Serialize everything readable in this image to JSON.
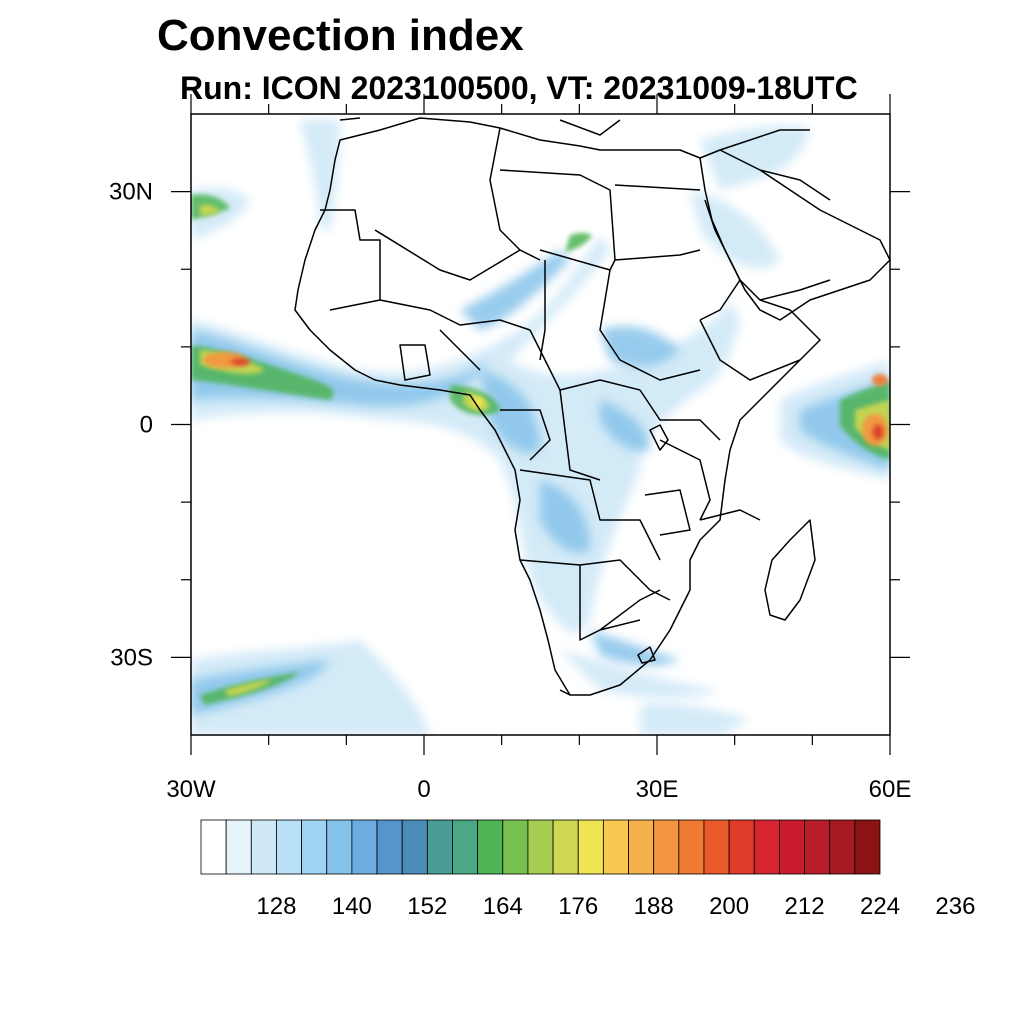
{
  "title": "Convection index",
  "subtitle": "Run: ICON 2023100500,  VT: 20231009-18UTC",
  "map": {
    "lon_range": [
      -30,
      60
    ],
    "lat_range": [
      -40,
      40
    ],
    "lon_ticks": [
      {
        "value": -30,
        "label": "30W"
      },
      {
        "value": 0,
        "label": "0"
      },
      {
        "value": 30,
        "label": "30E"
      },
      {
        "value": 60,
        "label": "60E"
      }
    ],
    "lat_ticks": [
      {
        "value": 30,
        "label": "30N"
      },
      {
        "value": 0,
        "label": "0"
      },
      {
        "value": -30,
        "label": "30S"
      }
    ],
    "minor_lon": [
      -20,
      -10,
      10,
      20,
      40,
      50
    ],
    "minor_lat": [
      20,
      10,
      -10,
      -20
    ]
  },
  "colorbar": {
    "colors": [
      "#ffffff",
      "#e8f4fb",
      "#cfe8f7",
      "#b8e0f6",
      "#9fd5f2",
      "#86c3ea",
      "#6cace0",
      "#5594cc",
      "#4a8cb8",
      "#4a9c98",
      "#4aa884",
      "#4eb454",
      "#78c050",
      "#a6ce50",
      "#cfd850",
      "#f0e454",
      "#f8c850",
      "#f5b24a",
      "#f49640",
      "#f07a34",
      "#e85a2a",
      "#e03a2a",
      "#d82430",
      "#c81c2c",
      "#b81c28",
      "#a41a20",
      "#8a1414"
    ],
    "labels": [
      {
        "value": 128,
        "label": "128"
      },
      {
        "value": 140,
        "label": "140"
      },
      {
        "value": 152,
        "label": "152"
      },
      {
        "value": 164,
        "label": "164"
      },
      {
        "value": 176,
        "label": "176"
      },
      {
        "value": 188,
        "label": "188"
      },
      {
        "value": 200,
        "label": "200"
      },
      {
        "value": 212,
        "label": "212"
      },
      {
        "value": 224,
        "label": "224"
      },
      {
        "value": 236,
        "label": "236"
      }
    ],
    "levels_start": 116,
    "level_step": 4
  }
}
